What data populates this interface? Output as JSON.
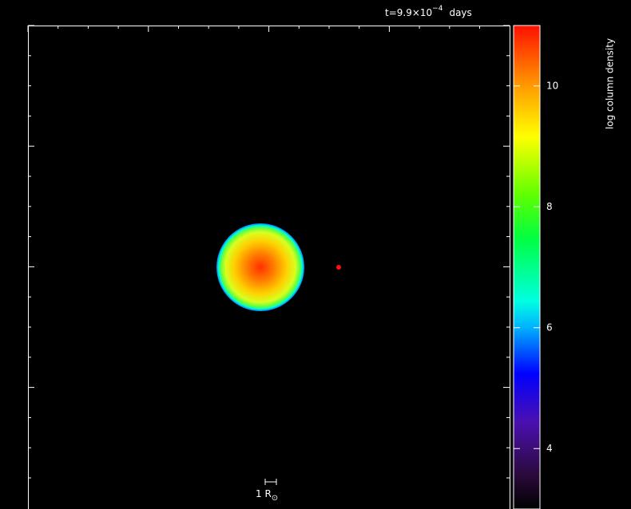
{
  "chart_data": {
    "type": "image",
    "time_label": "t=9.9×10",
    "time_exponent": "−4",
    "time_unit": "days",
    "colorbar_label": "log column density",
    "clim": [
      3,
      11
    ],
    "cticks": [
      4,
      6,
      8,
      10
    ],
    "scale_label": "1 R",
    "scale_label_sub": "⊙"
  }
}
